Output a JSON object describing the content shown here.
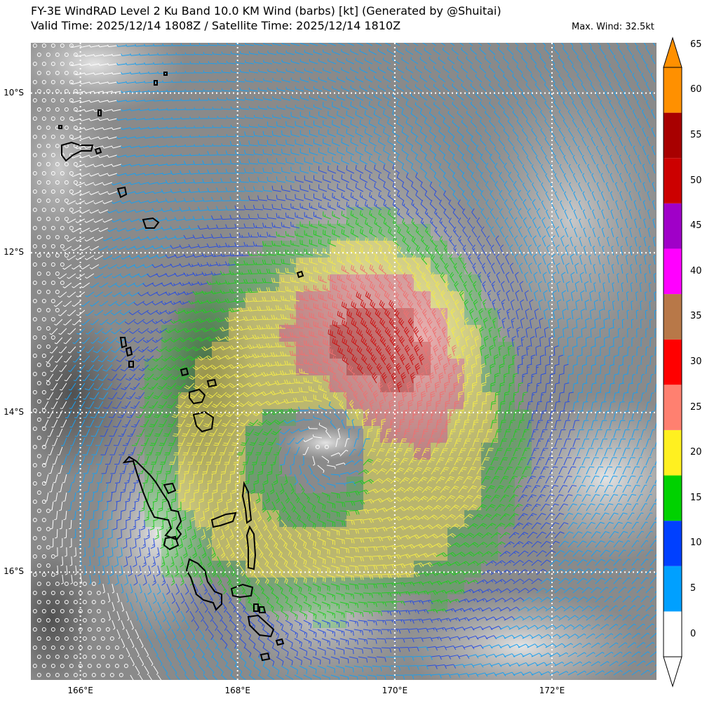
{
  "title": {
    "line1": "FY-3E WindRAD Level 2 Ku Band 10.0 KM Wind (barbs) [kt] (Generated by @Shuitai)",
    "line2": "Valid Time: 2025/12/14 1808Z / Satellite Time: 2025/12/14 1810Z",
    "max_wind": "Max. Wind: 32.5kt"
  },
  "map": {
    "lon_range": [
      165.37,
      173.33
    ],
    "lat_range": [
      -17.35,
      -9.37
    ],
    "lat_labels": [
      "10°S",
      "12°S",
      "14°S",
      "16°S"
    ],
    "lon_labels": [
      "166°E",
      "168°E",
      "170°E",
      "172°E"
    ],
    "lat_values": [
      -10,
      -12,
      -14,
      -16
    ],
    "lon_values": [
      166,
      168,
      170,
      172
    ],
    "gridlines": "dotted-white",
    "background": "infrared-satellite-grayscale",
    "storm_center": {
      "lon": 169.1,
      "lat": -14.45
    },
    "coastline_color": "#000000"
  },
  "colorbar": {
    "placement": "right",
    "extend": "both",
    "tick_labels": [
      "0",
      "5",
      "10",
      "15",
      "20",
      "25",
      "30",
      "35",
      "40",
      "45",
      "50",
      "55",
      "60",
      "65"
    ],
    "bins": [
      {
        "min": 0,
        "max": 5,
        "color": "#ffffff"
      },
      {
        "min": 5,
        "max": 10,
        "color": "#00a0ff"
      },
      {
        "min": 10,
        "max": 15,
        "color": "#0040ff"
      },
      {
        "min": 15,
        "max": 20,
        "color": "#00d200"
      },
      {
        "min": 20,
        "max": 25,
        "color": "#fff020"
      },
      {
        "min": 25,
        "max": 30,
        "color": "#ff8070"
      },
      {
        "min": 30,
        "max": 35,
        "color": "#ff0000"
      },
      {
        "min": 35,
        "max": 40,
        "color": "#b87848"
      },
      {
        "min": 40,
        "max": 45,
        "color": "#ff00ff"
      },
      {
        "min": 45,
        "max": 50,
        "color": "#a000c8"
      },
      {
        "min": 50,
        "max": 55,
        "color": "#cc0000"
      },
      {
        "min": 55,
        "max": 60,
        "color": "#a80000"
      },
      {
        "min": 60,
        "max": 65,
        "color": "#ff9000"
      }
    ],
    "over_color": "#ff9000",
    "under_color": "#ffffff"
  },
  "barb_colors": {
    "calm": "#ffffff",
    "light": "#1aa0f0",
    "moderate": "#2a4fe0",
    "fresh": "#22cc22",
    "strong": "#f2e94a",
    "gale": "#f07070",
    "peak": "#cc1010"
  }
}
